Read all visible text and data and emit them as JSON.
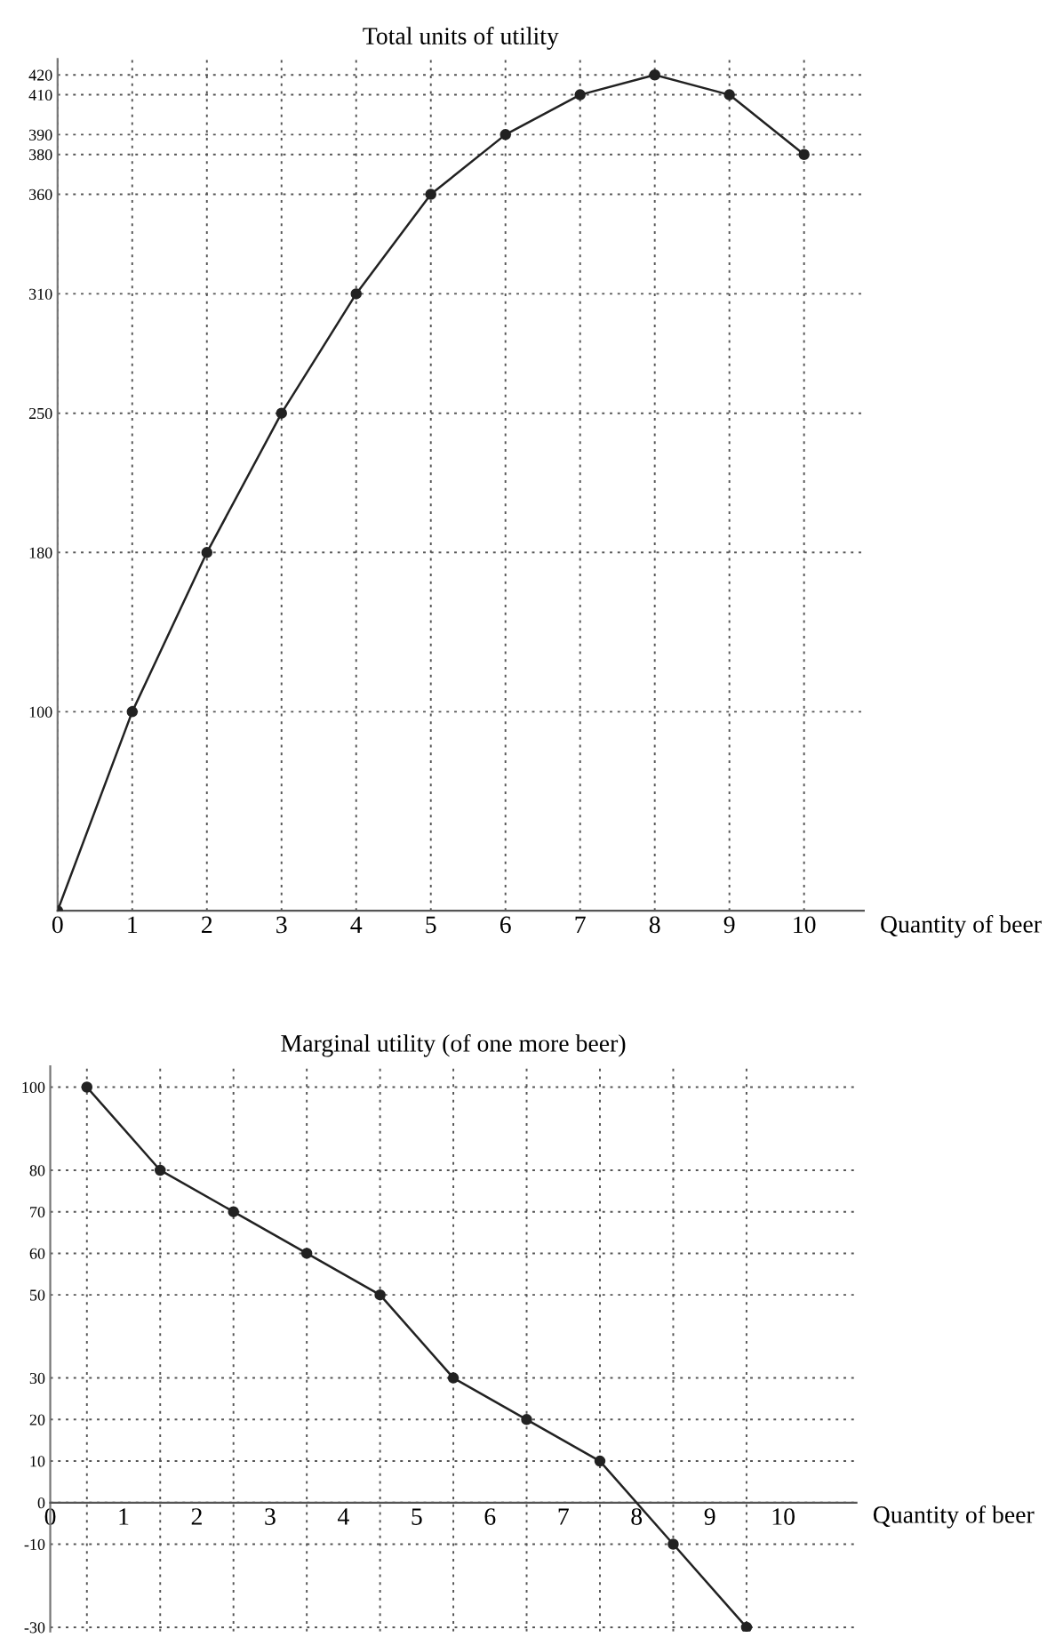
{
  "chart_data": [
    {
      "type": "line",
      "title": "Total units of utility",
      "xlabel": "Quantity of beer",
      "x": [
        0,
        1,
        2,
        3,
        4,
        5,
        6,
        7,
        8,
        9,
        10
      ],
      "series": [
        {
          "color": "#222222",
          "values": [
            0,
            100,
            180,
            250,
            310,
            360,
            390,
            410,
            420,
            410,
            380
          ]
        }
      ],
      "xlim": [
        0,
        10.8
      ],
      "ylim": [
        0,
        428
      ],
      "xticks": [
        0,
        1,
        2,
        3,
        4,
        5,
        6,
        7,
        8,
        9,
        10
      ],
      "yticks": [
        100,
        180,
        250,
        310,
        360,
        380,
        390,
        410,
        420
      ],
      "grid": true,
      "marker": "circle",
      "line_style": "solid"
    },
    {
      "type": "line",
      "title": "Marginal utility (of one more beer)",
      "xlabel": "Quantity of beer",
      "x": [
        0.5,
        1.5,
        2.5,
        3.5,
        4.5,
        5.5,
        6.5,
        7.5,
        8.5,
        9.5
      ],
      "series": [
        {
          "color": "#222222",
          "values": [
            100,
            80,
            70,
            60,
            50,
            30,
            20,
            10,
            -10,
            -30
          ]
        }
      ],
      "xlim": [
        0,
        11
      ],
      "ylim": [
        -31,
        105
      ],
      "xticks": [
        0,
        1,
        2,
        3,
        4,
        5,
        6,
        7,
        8,
        9,
        10
      ],
      "yticks": [
        -30,
        -10,
        0,
        10,
        20,
        30,
        50,
        60,
        70,
        80,
        100
      ],
      "grid": "y",
      "marker": "circle",
      "line_style": "solid",
      "ref_lines": [
        {
          "axis": "x",
          "value": 0.5,
          "line_style": "dotted"
        },
        {
          "axis": "x",
          "value": 1.5,
          "line_style": "dotted"
        },
        {
          "axis": "x",
          "value": 2.5,
          "line_style": "dotted"
        },
        {
          "axis": "x",
          "value": 3.5,
          "line_style": "dotted"
        },
        {
          "axis": "x",
          "value": 4.5,
          "line_style": "dotted"
        },
        {
          "axis": "x",
          "value": 5.5,
          "line_style": "dotted"
        },
        {
          "axis": "x",
          "value": 6.5,
          "line_style": "dotted"
        },
        {
          "axis": "x",
          "value": 7.5,
          "line_style": "dotted"
        },
        {
          "axis": "x",
          "value": 8.5,
          "line_style": "dotted"
        },
        {
          "axis": "x",
          "value": 9.5,
          "line_style": "dotted"
        }
      ]
    }
  ]
}
